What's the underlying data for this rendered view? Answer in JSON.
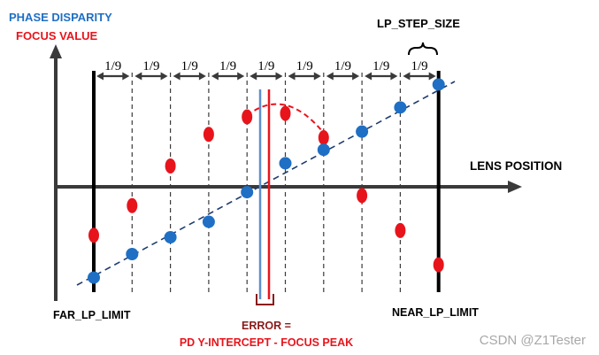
{
  "labels": {
    "y_axis_top": "PHASE DISPARITY",
    "y_axis_bottom": "FOCUS VALUE",
    "x_axis": "LENS POSITION",
    "step_size": "LP_STEP_SIZE",
    "far_limit": "FAR_LP_LIMIT",
    "near_limit": "NEAR_LP_LIMIT",
    "error_line1": "ERROR =",
    "error_line2": "PD Y-INTERCEPT - FOCUS PEAK",
    "step_fraction": "1/9",
    "watermark": "CSDN @Z1Tester"
  },
  "colors": {
    "phase": "#1f6fc5",
    "focus": "#e8141c",
    "axis": "#3a3a3a",
    "ink": "#000000",
    "label_blue": "#1f6fc5",
    "label_red": "#e8141c",
    "watermark": "#a8a8a8"
  },
  "chart_data": {
    "type": "scatter",
    "x": [
      0,
      1,
      2,
      3,
      4,
      5,
      6,
      7,
      8,
      9
    ],
    "series": [
      {
        "values": [
          -1.35,
          -1.0,
          -0.75,
          -0.52,
          -0.08,
          0.35,
          0.55,
          0.82,
          1.18,
          1.52
        ]
      },
      {
        "values": [
          -0.72,
          -0.28,
          0.31,
          0.78,
          1.04,
          1.09,
          0.73,
          -0.13,
          -0.65,
          -1.16
        ]
      }
    ],
    "focus_curve": [
      [
        4.0,
        1.06
      ],
      [
        5.0,
        1.13
      ],
      [
        6.0,
        0.8
      ]
    ]
  }
}
